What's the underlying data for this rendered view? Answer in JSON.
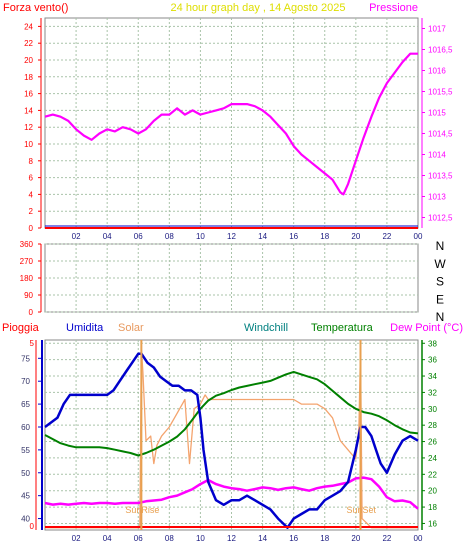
{
  "colors": {
    "frame": "#8a8a8a",
    "grid": "#a9c3a9",
    "left_axis": "#ff0000",
    "right_axis": "#ff00ff",
    "pressure": "#ff00ff",
    "humidity": "#0000cc",
    "solar": "#f4a46e",
    "temperature": "#008000",
    "dewpoint": "#ff00ff",
    "windchill": "#008080",
    "rain": "#ff0000",
    "title": "#dede00",
    "sun": "#e8a050"
  },
  "chart_data": [
    {
      "type": "line",
      "title": "24 hour graph day , 14 Agosto 2025",
      "left_label": "Forza vento()",
      "right_label": "Pressione",
      "x_ticks": [
        "02",
        "04",
        "06",
        "08",
        "10",
        "12",
        "14",
        "16",
        "18",
        "20",
        "22",
        "00"
      ],
      "x_range": [
        0,
        24
      ],
      "left_ticks": [
        "0",
        "2",
        "4",
        "6",
        "8",
        "10",
        "12",
        "14",
        "16",
        "18",
        "20",
        "22",
        "24"
      ],
      "left_range": [
        0,
        25
      ],
      "right_ticks": [
        "1012,5",
        "1013",
        "1013,5",
        "1014",
        "1014,5",
        "1015",
        "1015,5",
        "1016",
        "1016,5",
        "1017"
      ],
      "right_range": [
        1012.25,
        1017.25
      ],
      "series": [
        {
          "name": "Pressione",
          "axis": "right",
          "x": [
            0,
            0.5,
            1,
            1.5,
            2,
            2.5,
            3,
            3.5,
            4,
            4.5,
            5,
            5.5,
            6,
            6.5,
            7,
            7.5,
            8,
            8.5,
            9,
            9.5,
            10,
            10.5,
            11,
            11.5,
            12,
            12.5,
            13,
            13.5,
            14,
            14.5,
            15,
            15.5,
            16,
            16.5,
            17,
            17.5,
            18,
            18.5,
            19,
            19.2,
            19.5,
            20,
            20.5,
            21,
            21.5,
            22,
            22.5,
            23,
            23.5,
            24
          ],
          "y": [
            1014.9,
            1014.95,
            1014.9,
            1014.8,
            1014.6,
            1014.45,
            1014.35,
            1014.5,
            1014.6,
            1014.55,
            1014.65,
            1014.6,
            1014.5,
            1014.6,
            1014.8,
            1014.95,
            1014.95,
            1015.1,
            1014.95,
            1015.05,
            1014.95,
            1015.0,
            1015.05,
            1015.1,
            1015.2,
            1015.2,
            1015.2,
            1015.15,
            1015.05,
            1014.9,
            1014.7,
            1014.5,
            1014.2,
            1014.0,
            1013.85,
            1013.7,
            1013.55,
            1013.4,
            1013.1,
            1013.05,
            1013.3,
            1013.85,
            1014.4,
            1014.9,
            1015.35,
            1015.7,
            1015.95,
            1016.2,
            1016.4,
            1016.4
          ]
        },
        {
          "name": "Forza vento",
          "axis": "left",
          "x": [
            0,
            24
          ],
          "y": [
            0,
            0
          ]
        }
      ]
    },
    {
      "type": "line",
      "labels_right": [
        "N",
        "W",
        "S",
        "E",
        "N"
      ],
      "left_ticks": [
        "0",
        "90",
        "180",
        "270",
        "360"
      ],
      "left_range": [
        0,
        360
      ],
      "x_range": [
        0,
        24
      ],
      "series": []
    },
    {
      "type": "line",
      "header": {
        "rain": "Pioggia",
        "humidity": "Umidita",
        "solar": "Solar",
        "windchill": "Windchill",
        "temperature": "Temperatura",
        "dewpoint": "Dew Point (°C)"
      },
      "x_ticks": [
        "02",
        "04",
        "06",
        "08",
        "10",
        "12",
        "14",
        "16",
        "18",
        "20",
        "22",
        "00"
      ],
      "x_range": [
        0,
        24
      ],
      "left_ticks": [
        "40",
        "45",
        "50",
        "55",
        "60",
        "65",
        "70",
        "75"
      ],
      "left_range": [
        37.5,
        79
      ],
      "left_top_label": "5",
      "left_zero_label": "0",
      "right_ticks": [
        "16",
        "18",
        "20",
        "22",
        "24",
        "26",
        "28",
        "30",
        "32",
        "34",
        "36",
        "38"
      ],
      "right_range": [
        15.2,
        38.4
      ],
      "sunrise": {
        "label": "SunRise",
        "x": 6.2
      },
      "sunset": {
        "label": "SunSet",
        "x": 20.3
      },
      "series": [
        {
          "name": "Umidita",
          "axis": "left",
          "x": [
            0,
            0.4,
            0.8,
            1.2,
            1.6,
            2.0,
            2.4,
            2.8,
            3.2,
            3.6,
            4.0,
            4.4,
            4.8,
            5.2,
            5.6,
            6.0,
            6.2,
            6.6,
            7.0,
            7.4,
            7.8,
            8.2,
            8.6,
            9.0,
            9.4,
            9.8,
            10.0,
            10.2,
            10.5,
            11,
            11.5,
            12,
            12.5,
            13,
            13.5,
            14,
            14.5,
            15,
            15.3,
            15.6,
            16,
            16.5,
            17,
            17.5,
            18,
            18.5,
            19,
            19.5,
            20,
            20.3,
            20.6,
            21,
            21.3,
            21.6,
            22,
            22.5,
            23,
            23.5,
            24
          ],
          "y": [
            60,
            61,
            62,
            65,
            67,
            67,
            67,
            67,
            67,
            67,
            67,
            68,
            70,
            72,
            74,
            76,
            76,
            74,
            73,
            71,
            70,
            69,
            69,
            68,
            68,
            67,
            62,
            55,
            48,
            44,
            43,
            44,
            44,
            45,
            44,
            43,
            42,
            40,
            39,
            38,
            40,
            41,
            42,
            42,
            44,
            45,
            46,
            48,
            55,
            60,
            60,
            58,
            55,
            52,
            50,
            54,
            57,
            58,
            57
          ]
        },
        {
          "name": "Solar",
          "axis": "left",
          "x": [
            0,
            6.1,
            6.2,
            6.3,
            6.5,
            6.8,
            7.0,
            7.2,
            7.5,
            8.0,
            8.5,
            9.0,
            9.3,
            9.6,
            10.0,
            10.3,
            10.5,
            11,
            11.5,
            12,
            12.5,
            13,
            13.5,
            14,
            14.5,
            15,
            15.5,
            16,
            16.5,
            17,
            17.5,
            18,
            18.5,
            19,
            19.5,
            20,
            20.2,
            20.3,
            20.4,
            21,
            21.5,
            22,
            22.5,
            23,
            23.5,
            24
          ],
          "y": [
            38,
            38,
            77,
            72,
            57,
            58,
            52,
            56,
            58,
            60,
            63,
            66,
            52,
            64,
            65,
            67,
            66,
            66,
            66,
            66,
            66,
            66,
            66,
            66,
            66,
            66,
            66,
            66,
            65,
            65,
            65,
            64,
            62,
            57,
            55,
            53,
            60,
            77,
            40,
            38,
            38,
            38,
            38,
            38,
            38,
            38
          ]
        },
        {
          "name": "Temperatura",
          "axis": "right",
          "x": [
            0,
            0.5,
            1,
            1.5,
            2,
            2.5,
            3,
            3.5,
            4,
            4.5,
            5,
            5.5,
            6,
            6.5,
            7,
            7.5,
            8,
            8.5,
            9,
            9.5,
            10,
            10.5,
            11,
            11.5,
            12,
            12.5,
            13,
            13.5,
            14,
            14.5,
            15,
            15.5,
            16,
            16.5,
            17,
            17.5,
            18,
            18.5,
            19,
            19.5,
            20,
            20.5,
            21,
            21.5,
            22,
            22.5,
            23,
            23.5,
            24
          ],
          "y": [
            26.8,
            26.3,
            25.8,
            25.5,
            25.3,
            25.3,
            25.3,
            25.3,
            25.2,
            25.0,
            24.8,
            24.6,
            24.3,
            24.6,
            25.0,
            25.5,
            26.0,
            26.6,
            27.5,
            28.7,
            30.0,
            31.0,
            31.6,
            31.9,
            32.3,
            32.6,
            32.8,
            33.0,
            33.2,
            33.4,
            33.8,
            34.2,
            34.5,
            34.2,
            33.9,
            33.6,
            33.0,
            32.2,
            31.4,
            30.6,
            30.0,
            29.6,
            29.4,
            29.1,
            28.6,
            28.0,
            27.5,
            27.1,
            27.0
          ]
        },
        {
          "name": "Dew Point",
          "axis": "right",
          "x": [
            0,
            0.5,
            1,
            1.5,
            2,
            2.5,
            3,
            3.5,
            4,
            4.5,
            5,
            5.5,
            6,
            6.5,
            7,
            7.5,
            8,
            8.5,
            9,
            9.5,
            10,
            10.5,
            11,
            11.5,
            12,
            12.5,
            13,
            13.5,
            14,
            14.5,
            15,
            15.5,
            16,
            16.5,
            17,
            17.5,
            18,
            18.5,
            19,
            19.5,
            20,
            20.5,
            21,
            21.5,
            22,
            22.5,
            23,
            23.5,
            24
          ],
          "y": [
            18.5,
            18.3,
            18.4,
            18.3,
            18.4,
            18.5,
            18.4,
            18.5,
            18.5,
            18.4,
            18.5,
            18.5,
            18.5,
            18.7,
            18.8,
            18.9,
            19.2,
            19.4,
            19.8,
            20.2,
            20.8,
            21.3,
            20.8,
            20.5,
            20.3,
            20.2,
            20.0,
            20.2,
            20.4,
            20.3,
            20.1,
            20.3,
            20.4,
            20.2,
            20.0,
            20.3,
            20.5,
            20.6,
            20.8,
            21.0,
            21.5,
            21.6,
            21.4,
            20.5,
            19.2,
            18.7,
            18.8,
            18.6,
            17.8
          ]
        },
        {
          "name": "Pioggia",
          "axis": "left_rain",
          "x": [
            0,
            24
          ],
          "y": [
            0,
            0
          ]
        }
      ]
    }
  ]
}
